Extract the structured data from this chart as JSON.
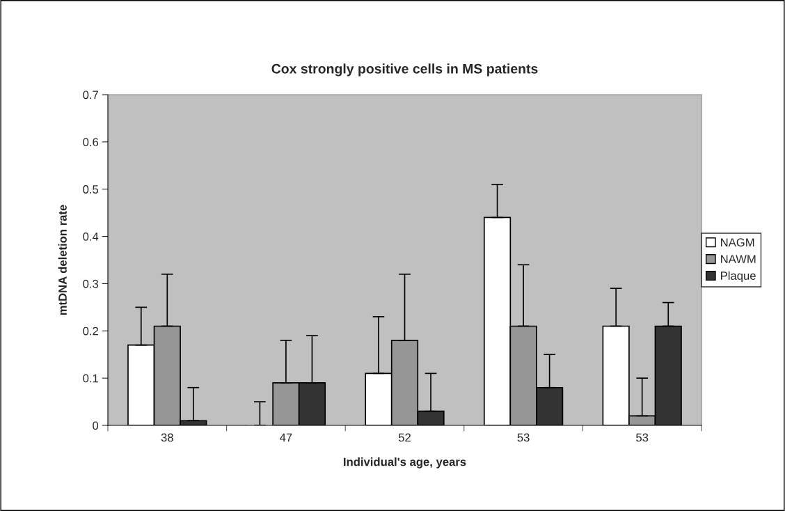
{
  "chart_data": {
    "type": "bar",
    "title": "Cox strongly positive cells in MS patients",
    "xlabel": "Individual's age, years",
    "ylabel": "mtDNA deletion rate",
    "categories": [
      "38",
      "47",
      "52",
      "53",
      "53"
    ],
    "series": [
      {
        "name": "NAGM",
        "color": "#ffffff",
        "values": [
          0.17,
          0,
          0.11,
          0.44,
          0.21
        ],
        "errors": [
          [
            0.17,
            0.25
          ],
          [
            0,
            0.05
          ],
          [
            0.11,
            0.23
          ],
          [
            0.44,
            0.51
          ],
          [
            0.21,
            0.29
          ]
        ]
      },
      {
        "name": "NAWM",
        "color": "#969696",
        "values": [
          0.21,
          0.09,
          0.18,
          0.21,
          0.02
        ],
        "errors": [
          [
            0.21,
            0.32
          ],
          [
            0.09,
            0.18
          ],
          [
            0.18,
            0.32
          ],
          [
            0.21,
            0.34
          ],
          [
            0.02,
            0.1
          ]
        ]
      },
      {
        "name": "Plaque",
        "color": "#333333",
        "values": [
          0.01,
          0.09,
          0.03,
          0.08,
          0.21
        ],
        "errors": [
          [
            0.01,
            0.08
          ],
          [
            0.09,
            0.19
          ],
          [
            0.03,
            0.11
          ],
          [
            0.08,
            0.15
          ],
          [
            0.21,
            0.26
          ]
        ]
      }
    ],
    "ylim": [
      0,
      0.7
    ],
    "yticks": [
      0,
      0.1,
      0.2,
      0.3,
      0.4,
      0.5,
      0.6,
      0.7
    ],
    "grid": false,
    "legend": "right"
  }
}
